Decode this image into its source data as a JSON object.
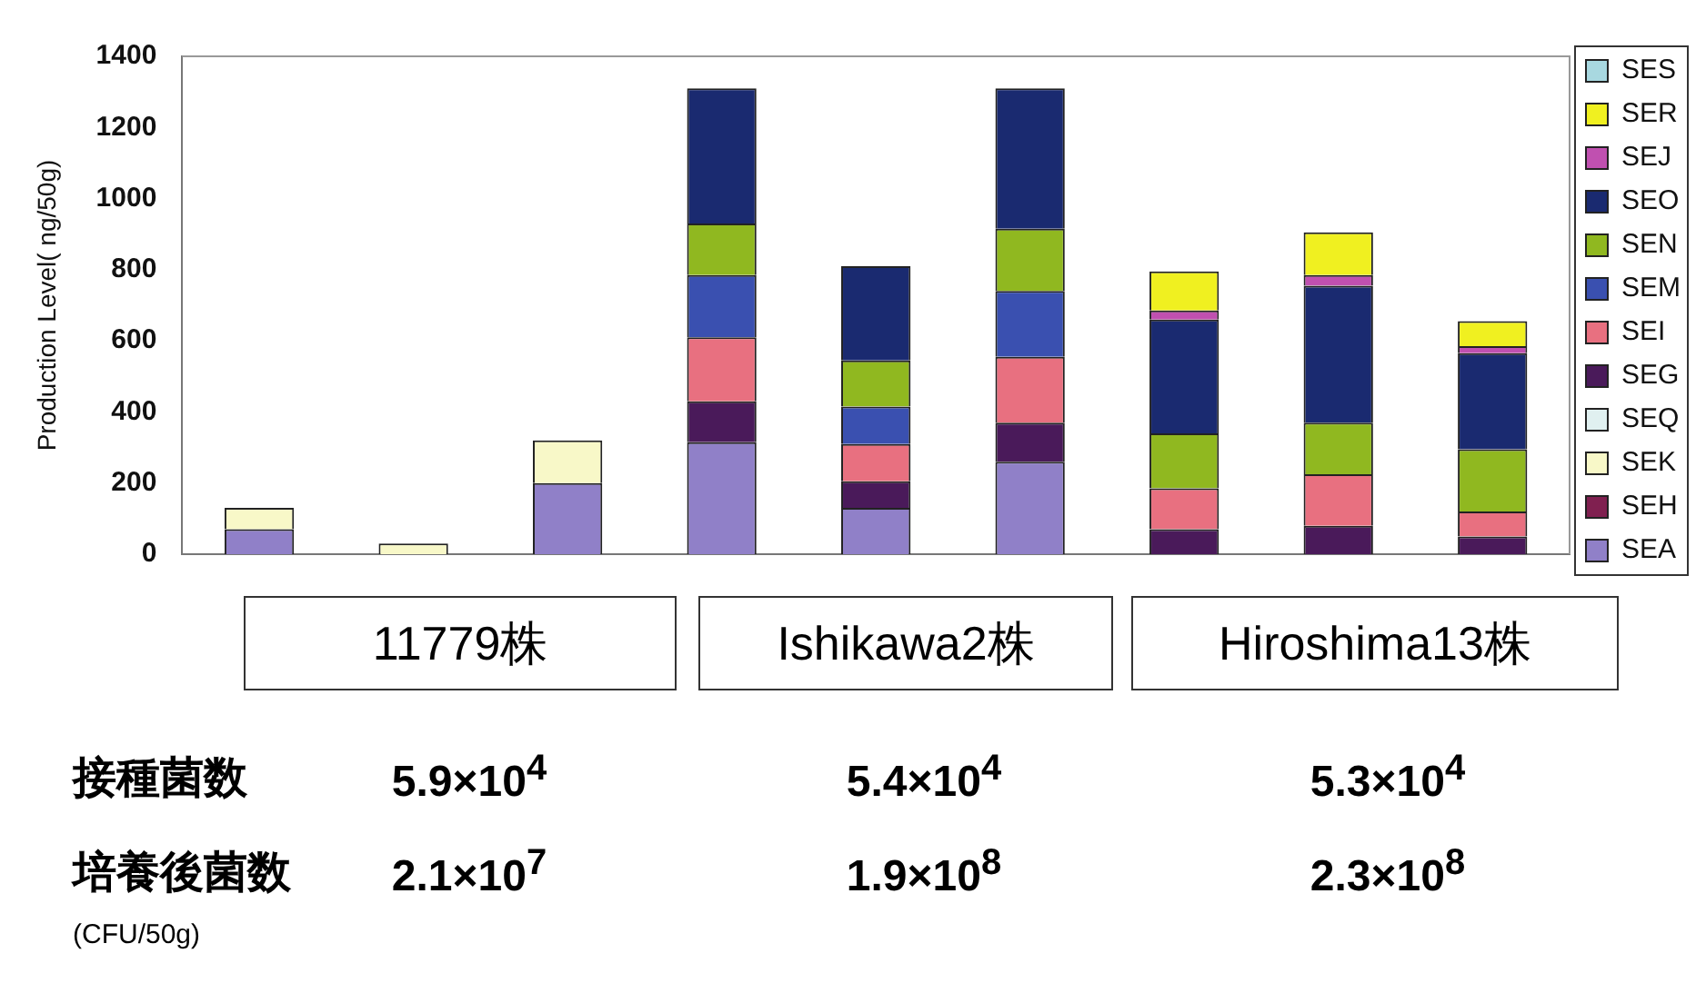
{
  "chart_data": {
    "type": "bar",
    "stacked": true,
    "ylabel": "Production Level( ng/50g)",
    "categories": [
      null,
      null,
      null,
      null,
      null,
      null,
      null,
      null,
      null
    ],
    "series": [
      {
        "name": "SEA",
        "color": "#9080c8",
        "values": [
          70,
          0,
          200,
          315,
          130,
          260,
          0,
          0,
          0
        ]
      },
      {
        "name": "SEH",
        "color": "#802050",
        "values": [
          0,
          0,
          0,
          0,
          0,
          0,
          0,
          0,
          0
        ]
      },
      {
        "name": "SEK",
        "color": "#f8f8c8",
        "values": [
          60,
          30,
          120,
          0,
          0,
          0,
          0,
          0,
          0
        ]
      },
      {
        "name": "SEQ",
        "color": "#e0f0f0",
        "values": [
          0,
          0,
          0,
          0,
          0,
          0,
          0,
          0,
          0
        ]
      },
      {
        "name": "SEG",
        "color": "#4a1a5a",
        "values": [
          0,
          0,
          0,
          115,
          75,
          110,
          70,
          80,
          50
        ]
      },
      {
        "name": "SEI",
        "color": "#e87080",
        "values": [
          0,
          0,
          0,
          180,
          105,
          185,
          115,
          145,
          70
        ]
      },
      {
        "name": "SEM",
        "color": "#3a50b0",
        "values": [
          0,
          0,
          0,
          175,
          105,
          185,
          0,
          0,
          0
        ]
      },
      {
        "name": "SEN",
        "color": "#90b820",
        "values": [
          0,
          0,
          0,
          145,
          130,
          175,
          155,
          145,
          175
        ]
      },
      {
        "name": "SEO",
        "color": "#1a2a70",
        "values": [
          0,
          0,
          0,
          380,
          265,
          395,
          320,
          385,
          270
        ]
      },
      {
        "name": "SEJ",
        "color": "#c050b0",
        "values": [
          0,
          0,
          0,
          0,
          0,
          0,
          25,
          30,
          20
        ]
      },
      {
        "name": "SER",
        "color": "#f0f020",
        "values": [
          0,
          0,
          0,
          0,
          0,
          0,
          110,
          120,
          70
        ]
      },
      {
        "name": "SES",
        "color": "#a8d8e0",
        "values": [
          0,
          0,
          0,
          0,
          0,
          0,
          0,
          0,
          0
        ]
      }
    ],
    "ylim": [
      0,
      1400
    ],
    "yticks": [
      0,
      200,
      400,
      600,
      800,
      1000,
      1200,
      1400
    ],
    "grid": false,
    "legend": "right",
    "tick_labels": "y",
    "annotations": [
      "11779株",
      "Ishikawa2株",
      "Hiroshima13株",
      "接種菌数",
      "5.9×10$^{4}$",
      "5.4×10$^{4}$",
      "5.3×10$^{4}$",
      "培養後菌数",
      "2.1×10$^{7}$",
      "1.9×10$^{8}$",
      "2.3×10$^{8}$",
      "(CFU/50g)"
    ]
  }
}
